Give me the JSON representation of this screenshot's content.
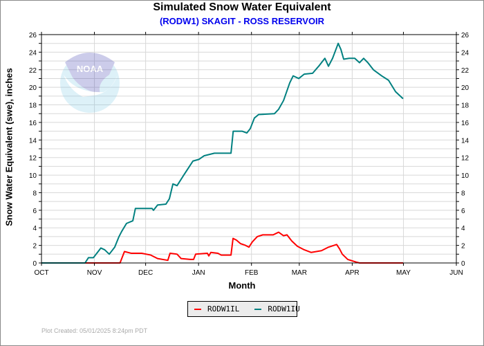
{
  "chart_data": {
    "type": "line",
    "title": "Simulated Snow Water Equivalent",
    "subtitle": "(RODW1) SKAGIT - ROSS RESERVOIR",
    "xlabel": "Month",
    "ylabel": "Snow Water Equivalent (swe),  inches",
    "x_unit": "days since Oct 1",
    "xlim": [
      0,
      243
    ],
    "ylim": [
      0,
      26
    ],
    "yticks": [
      0,
      2,
      4,
      6,
      8,
      10,
      12,
      14,
      16,
      18,
      20,
      22,
      24,
      26
    ],
    "xticks": [
      {
        "label": "OCT",
        "day": 0
      },
      {
        "label": "NOV",
        "day": 31
      },
      {
        "label": "DEC",
        "day": 61
      },
      {
        "label": "JAN",
        "day": 92
      },
      {
        "label": "FEB",
        "day": 123
      },
      {
        "label": "MAR",
        "day": 151
      },
      {
        "label": "APR",
        "day": 182
      },
      {
        "label": "MAY",
        "day": 212
      },
      {
        "label": "JUN",
        "day": 243
      }
    ],
    "grid": true,
    "legend_position": "bottom-center",
    "series": [
      {
        "name": "RODW1IL",
        "color": "#ff0000",
        "points": [
          [
            0,
            0
          ],
          [
            46,
            0
          ],
          [
            48.6,
            1.3
          ],
          [
            52.7,
            1.1
          ],
          [
            58.7,
            1.1
          ],
          [
            64,
            0.9
          ],
          [
            68,
            0.5
          ],
          [
            74,
            0.3
          ],
          [
            75.3,
            1.1
          ],
          [
            79.4,
            1.0
          ],
          [
            81.8,
            0.5
          ],
          [
            87.1,
            0.4
          ],
          [
            89.1,
            0.4
          ],
          [
            90.3,
            1.0
          ],
          [
            97.2,
            1.1
          ],
          [
            98,
            0.8
          ],
          [
            99.2,
            1.2
          ],
          [
            103.3,
            1.1
          ],
          [
            105.3,
            0.9
          ],
          [
            111,
            0.9
          ],
          [
            112.2,
            2.8
          ],
          [
            114.2,
            2.6
          ],
          [
            116.6,
            2.2
          ],
          [
            119.5,
            2.0
          ],
          [
            121.5,
            1.8
          ],
          [
            123.5,
            2.4
          ],
          [
            126.4,
            3.0
          ],
          [
            129.6,
            3.2
          ],
          [
            135.7,
            3.2
          ],
          [
            138.9,
            3.5
          ],
          [
            141.8,
            3.1
          ],
          [
            143.8,
            3.2
          ],
          [
            146.6,
            2.5
          ],
          [
            149.9,
            1.9
          ],
          [
            153.9,
            1.5
          ],
          [
            158,
            1.2
          ],
          [
            164,
            1.4
          ],
          [
            168.1,
            1.8
          ],
          [
            172.9,
            2.1
          ],
          [
            174.6,
            1.6
          ],
          [
            176.2,
            1.0
          ],
          [
            179.4,
            0.4
          ],
          [
            184.3,
            0.1
          ],
          [
            186.3,
            0
          ],
          [
            211.8,
            0
          ]
        ]
      },
      {
        "name": "RODW1IU",
        "color": "#008080",
        "points": [
          [
            0,
            0
          ],
          [
            25.5,
            0
          ],
          [
            27.5,
            0.6
          ],
          [
            30.4,
            0.6
          ],
          [
            34.8,
            1.7
          ],
          [
            37,
            1.5
          ],
          [
            39.7,
            1.0
          ],
          [
            42.9,
            1.8
          ],
          [
            45.4,
            3.0
          ],
          [
            47,
            3.6
          ],
          [
            49.8,
            4.5
          ],
          [
            53.5,
            4.8
          ],
          [
            55,
            6.2
          ],
          [
            64.8,
            6.2
          ],
          [
            65.6,
            6.0
          ],
          [
            68,
            6.6
          ],
          [
            72.9,
            6.7
          ],
          [
            74.9,
            7.3
          ],
          [
            77,
            9.0
          ],
          [
            79.4,
            8.8
          ],
          [
            83,
            9.9
          ],
          [
            88.7,
            11.6
          ],
          [
            92.3,
            11.8
          ],
          [
            95.2,
            12.2
          ],
          [
            101.3,
            12.5
          ],
          [
            111,
            12.5
          ],
          [
            112.3,
            15.0
          ],
          [
            117.5,
            15.0
          ],
          [
            120.3,
            14.8
          ],
          [
            122.3,
            15.3
          ],
          [
            124.7,
            16.5
          ],
          [
            127.2,
            16.9
          ],
          [
            136.5,
            17.0
          ],
          [
            138.9,
            17.5
          ],
          [
            141.8,
            18.5
          ],
          [
            145.4,
            20.5
          ],
          [
            147.4,
            21.3
          ],
          [
            150.7,
            21.0
          ],
          [
            153.9,
            21.5
          ],
          [
            158.8,
            21.6
          ],
          [
            162.8,
            22.5
          ],
          [
            166,
            23.3
          ],
          [
            168.1,
            22.4
          ],
          [
            170.5,
            23.3
          ],
          [
            173.8,
            25.0
          ],
          [
            175.4,
            24.3
          ],
          [
            177,
            23.2
          ],
          [
            180.2,
            23.3
          ],
          [
            183.5,
            23.3
          ],
          [
            186.3,
            22.8
          ],
          [
            188.7,
            23.3
          ],
          [
            191.2,
            22.8
          ],
          [
            194.4,
            22.0
          ],
          [
            199.3,
            21.3
          ],
          [
            203.3,
            20.8
          ],
          [
            207.4,
            19.5
          ],
          [
            211.8,
            18.7
          ]
        ]
      }
    ]
  },
  "logo_text": "NOAA",
  "footer": "Plot Created: 05/01/2025 8:24pm PDT"
}
